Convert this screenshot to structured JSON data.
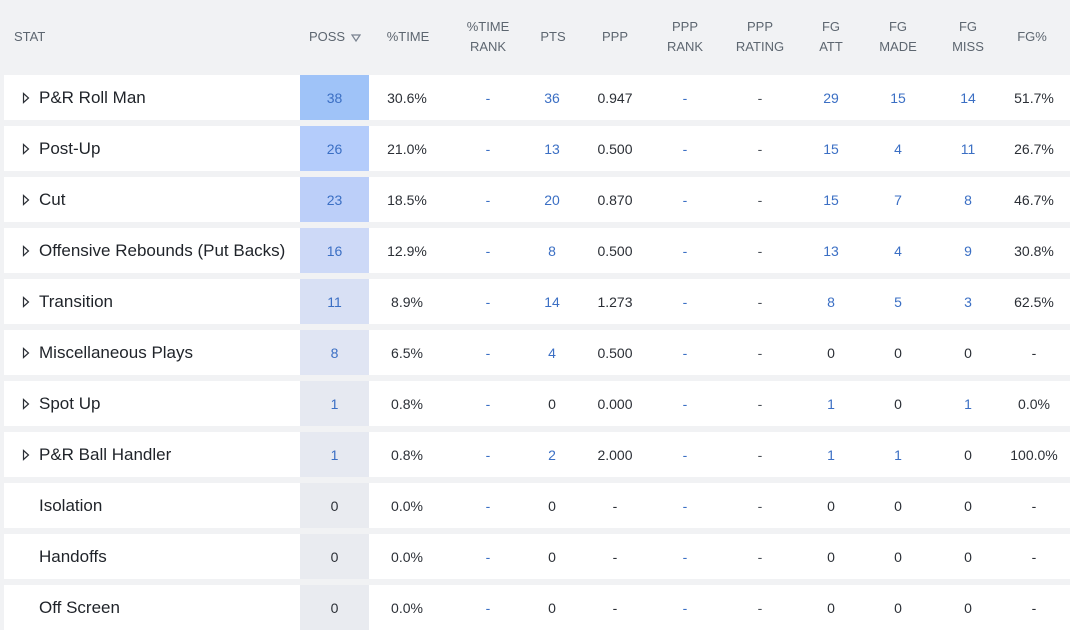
{
  "headers": {
    "stat": "STAT",
    "poss": "POSS",
    "time_pct": "%TIME",
    "time_rank": "%TIME\nRANK",
    "pts": "PTS",
    "ppp": "PPP",
    "ppp_rank": "PPP\nRANK",
    "ppp_rating": "PPP\nRATING",
    "fg_att": "FG\nATT",
    "fg_made": "FG\nMADE",
    "fg_miss": "FG\nMISS",
    "fg_pct": "FG%"
  },
  "sort_icon": "triangle-down-outline-icon",
  "colors": {
    "poss_highlight_38": "#9fc3f8",
    "poss_highlight_26": "#b4ccfb",
    "poss_highlight_23": "#bccff9",
    "poss_highlight_16": "#cdd9f7",
    "poss_highlight_11": "#d8e0f4",
    "poss_highlight_8": "#e0e5f3",
    "poss_highlight_1": "#e6e9f1",
    "poss_highlight_0": "#e9ebf0",
    "link": "#3b6fc4"
  },
  "rows": [
    {
      "name": "P&R Roll Man",
      "expandable": true,
      "poss": "38",
      "time": "30.6%",
      "time_rank": "-",
      "pts": "36",
      "ppp": "0.947",
      "ppp_rank": "-",
      "ppp_rating": "-",
      "fg_att": "29",
      "fg_made": "15",
      "fg_miss": "14",
      "fg_pct": "51.7%"
    },
    {
      "name": "Post-Up",
      "expandable": true,
      "poss": "26",
      "time": "21.0%",
      "time_rank": "-",
      "pts": "13",
      "ppp": "0.500",
      "ppp_rank": "-",
      "ppp_rating": "-",
      "fg_att": "15",
      "fg_made": "4",
      "fg_miss": "11",
      "fg_pct": "26.7%"
    },
    {
      "name": "Cut",
      "expandable": true,
      "poss": "23",
      "time": "18.5%",
      "time_rank": "-",
      "pts": "20",
      "ppp": "0.870",
      "ppp_rank": "-",
      "ppp_rating": "-",
      "fg_att": "15",
      "fg_made": "7",
      "fg_miss": "8",
      "fg_pct": "46.7%"
    },
    {
      "name": "Offensive Rebounds (Put Backs)",
      "expandable": true,
      "poss": "16",
      "time": "12.9%",
      "time_rank": "-",
      "pts": "8",
      "ppp": "0.500",
      "ppp_rank": "-",
      "ppp_rating": "-",
      "fg_att": "13",
      "fg_made": "4",
      "fg_miss": "9",
      "fg_pct": "30.8%"
    },
    {
      "name": "Transition",
      "expandable": true,
      "poss": "11",
      "time": "8.9%",
      "time_rank": "-",
      "pts": "14",
      "ppp": "1.273",
      "ppp_rank": "-",
      "ppp_rating": "-",
      "fg_att": "8",
      "fg_made": "5",
      "fg_miss": "3",
      "fg_pct": "62.5%"
    },
    {
      "name": "Miscellaneous Plays",
      "expandable": true,
      "poss": "8",
      "time": "6.5%",
      "time_rank": "-",
      "pts": "4",
      "ppp": "0.500",
      "ppp_rank": "-",
      "ppp_rating": "-",
      "fg_att": "0",
      "fg_made": "0",
      "fg_miss": "0",
      "fg_pct": "-"
    },
    {
      "name": "Spot Up",
      "expandable": true,
      "poss": "1",
      "time": "0.8%",
      "time_rank": "-",
      "pts": "0",
      "ppp": "0.000",
      "ppp_rank": "-",
      "ppp_rating": "-",
      "fg_att": "1",
      "fg_made": "0",
      "fg_miss": "1",
      "fg_pct": "0.0%"
    },
    {
      "name": "P&R Ball Handler",
      "expandable": true,
      "poss": "1",
      "time": "0.8%",
      "time_rank": "-",
      "pts": "2",
      "ppp": "2.000",
      "ppp_rank": "-",
      "ppp_rating": "-",
      "fg_att": "1",
      "fg_made": "1",
      "fg_miss": "0",
      "fg_pct": "100.0%"
    },
    {
      "name": "Isolation",
      "expandable": false,
      "poss": "0",
      "time": "0.0%",
      "time_rank": "-",
      "pts": "0",
      "ppp": "-",
      "ppp_rank": "-",
      "ppp_rating": "-",
      "fg_att": "0",
      "fg_made": "0",
      "fg_miss": "0",
      "fg_pct": "-"
    },
    {
      "name": "Handoffs",
      "expandable": false,
      "poss": "0",
      "time": "0.0%",
      "time_rank": "-",
      "pts": "0",
      "ppp": "-",
      "ppp_rank": "-",
      "ppp_rating": "-",
      "fg_att": "0",
      "fg_made": "0",
      "fg_miss": "0",
      "fg_pct": "-"
    },
    {
      "name": "Off Screen",
      "expandable": false,
      "poss": "0",
      "time": "0.0%",
      "time_rank": "-",
      "pts": "0",
      "ppp": "-",
      "ppp_rank": "-",
      "ppp_rating": "-",
      "fg_att": "0",
      "fg_made": "0",
      "fg_miss": "0",
      "fg_pct": "-"
    }
  ]
}
